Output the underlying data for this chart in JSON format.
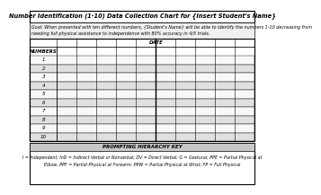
{
  "title": "Number Identification (1-10) Data Collection Chart for {Insert Student's Name}",
  "goal_line1": "Goal: When presented with ten different numbers, {Student's Name} will be able to identify the numbers 1-10 decreasing from",
  "goal_line2": "needing full physical assistance to independence with 80% accuracy in 4/5 trials.",
  "date_label": "DATE",
  "numbers_label": "NUMBERS",
  "row_labels": [
    "1",
    "2",
    "3",
    "4",
    "5",
    "6",
    "7",
    "8",
    "9",
    "10"
  ],
  "num_date_cols": 10,
  "prompting_header": "PROMPTING HIERARCHY KEY",
  "key_line1": "I = Independent; InD = Indirect Verbal or Nonverbal; DV = Direct Verbal; G = Gestural; PPE = Partial Physical at",
  "key_line2": "Elbow; PPF = Partial Physical at Forearm; PPW = Partial Physical at Wrist; FP = Full Physical",
  "bg_color": "#ffffff",
  "title_fontsize": 4.8,
  "goal_fontsize": 3.5,
  "label_fontsize": 4.0,
  "key_fontsize": 3.4,
  "thick_col_index": 5
}
